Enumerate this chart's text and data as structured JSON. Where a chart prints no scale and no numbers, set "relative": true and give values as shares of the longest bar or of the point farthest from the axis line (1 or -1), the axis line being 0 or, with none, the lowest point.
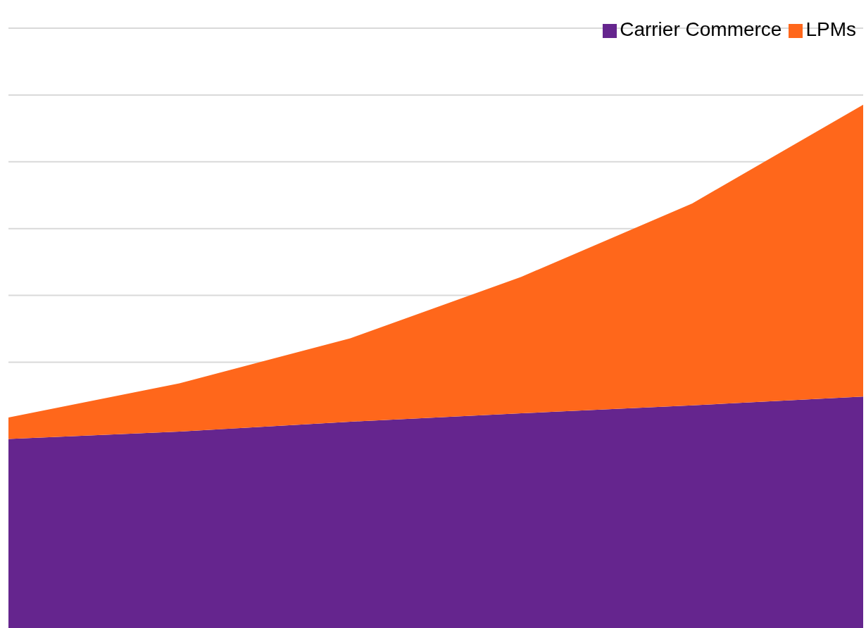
{
  "chart_data": {
    "type": "area",
    "stacked": true,
    "relative": true,
    "categories": [
      null,
      null,
      null,
      null,
      null,
      null
    ],
    "series": [
      {
        "name": "Carrier Commerce",
        "color": "#65258e",
        "values": [
          0.363,
          0.377,
          0.396,
          0.412,
          0.427,
          0.444
        ]
      },
      {
        "name": "LPMs",
        "color": "#ff671b",
        "values": [
          0.041,
          0.092,
          0.159,
          0.26,
          0.385,
          0.556
        ]
      }
    ],
    "grid": "y",
    "legend": "top right"
  }
}
